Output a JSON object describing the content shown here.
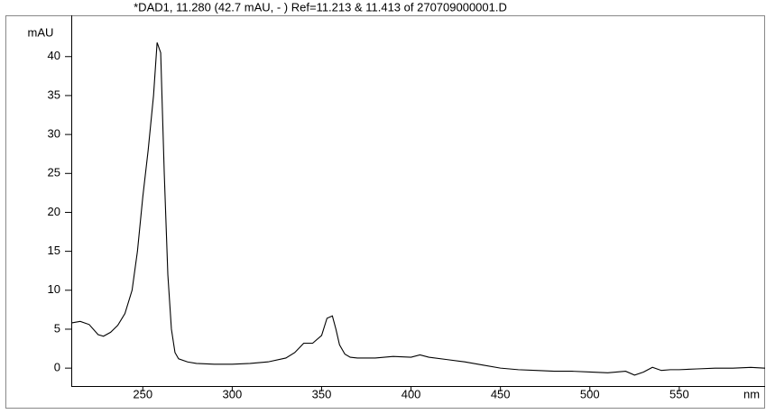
{
  "chart_data": {
    "type": "line",
    "title": "*DAD1, 11.280 (42.7 mAU, - ) Ref=11.213 & 11.413 of 270709000001.D",
    "ylabel": "mAU",
    "xlabel": "nm",
    "xlim": [
      210,
      598
    ],
    "ylim": [
      -2.3,
      45.3
    ],
    "xticks": [
      250,
      300,
      350,
      400,
      450,
      500,
      550
    ],
    "yticks": [
      0,
      5,
      10,
      15,
      20,
      25,
      30,
      35,
      40
    ],
    "series": [
      {
        "color": "#000000",
        "x": [
          210,
          215,
          220,
          225,
          228,
          232,
          236,
          240,
          244,
          247,
          250,
          253,
          256,
          258,
          260,
          262,
          264,
          266,
          268,
          270,
          275,
          280,
          290,
          300,
          310,
          320,
          330,
          335,
          340,
          345,
          350,
          353,
          356,
          358,
          360,
          363,
          366,
          370,
          380,
          390,
          400,
          405,
          410,
          420,
          430,
          440,
          450,
          460,
          470,
          480,
          490,
          500,
          510,
          520,
          525,
          530,
          535,
          540,
          545,
          550,
          560,
          570,
          580,
          590,
          598
        ],
        "values": [
          5.8,
          6.0,
          5.6,
          4.3,
          4.1,
          4.6,
          5.5,
          7.0,
          10.0,
          15,
          22,
          28,
          35,
          41.8,
          40.5,
          25,
          12,
          5,
          2.0,
          1.2,
          0.8,
          0.6,
          0.5,
          0.5,
          0.6,
          0.8,
          1.3,
          2.0,
          3.2,
          3.2,
          4.2,
          6.4,
          6.7,
          5.0,
          3.0,
          1.8,
          1.4,
          1.3,
          1.3,
          1.5,
          1.4,
          1.7,
          1.4,
          1.1,
          0.8,
          0.4,
          0.0,
          -0.2,
          -0.3,
          -0.4,
          -0.4,
          -0.5,
          -0.6,
          -0.4,
          -0.9,
          -0.5,
          0.1,
          -0.3,
          -0.2,
          -0.2,
          -0.1,
          0.0,
          0.0,
          0.1,
          0.0
        ]
      }
    ]
  }
}
